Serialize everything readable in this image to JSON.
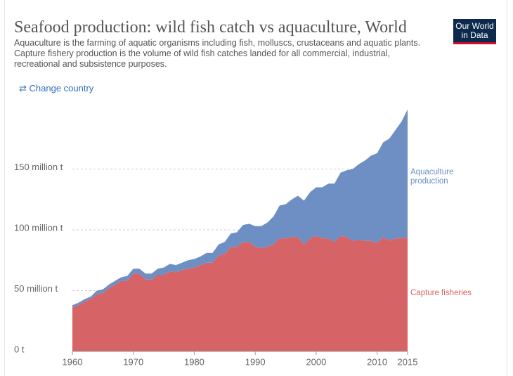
{
  "header": {
    "title": "Seafood production: wild fish catch vs aquaculture, World",
    "subtitle": "Aquaculture is the farming of aquatic organisms including fish, molluscs, crustaceans and aquatic plants. Capture fishery production is the volume of wild fish catches landed for all commercial, industrial, recreational and subsistence purposes.",
    "change_country": "Change country",
    "logo": "Our World in Data"
  },
  "chart_data": {
    "type": "area",
    "stacked": true,
    "x": [
      1960,
      1961,
      1962,
      1963,
      1964,
      1965,
      1966,
      1967,
      1968,
      1969,
      1970,
      1971,
      1972,
      1973,
      1974,
      1975,
      1976,
      1977,
      1978,
      1979,
      1980,
      1981,
      1982,
      1983,
      1984,
      1985,
      1986,
      1987,
      1988,
      1989,
      1990,
      1991,
      1992,
      1993,
      1994,
      1995,
      1996,
      1997,
      1998,
      1999,
      2000,
      2001,
      2002,
      2003,
      2004,
      2005,
      2006,
      2007,
      2008,
      2009,
      2010,
      2011,
      2012,
      2013,
      2014,
      2015
    ],
    "series": [
      {
        "name": "Capture fisheries",
        "color": "#d66466",
        "values": [
          36,
          38,
          41,
          43,
          47,
          48,
          52,
          55,
          58,
          58,
          64,
          64,
          59,
          59,
          63,
          63,
          66,
          65,
          67,
          68,
          69,
          71,
          73,
          73,
          79,
          80,
          86,
          86,
          90,
          90,
          86,
          85,
          86,
          88,
          93,
          93,
          94,
          94,
          88,
          93,
          95,
          93,
          93,
          90,
          95,
          94,
          91,
          92,
          91,
          91,
          89,
          94,
          91,
          93,
          93,
          94
        ]
      },
      {
        "name": "Aquaculture production",
        "color": "#6d8fc4",
        "values": [
          2,
          2,
          2,
          2,
          3,
          3,
          3,
          3,
          3,
          4,
          4,
          4,
          5,
          5,
          5,
          6,
          6,
          6,
          6,
          7,
          7,
          7,
          8,
          8,
          9,
          10,
          11,
          12,
          14,
          15,
          17,
          18,
          20,
          23,
          27,
          28,
          31,
          34,
          36,
          38,
          40,
          42,
          45,
          48,
          52,
          55,
          59,
          62,
          66,
          70,
          74,
          78,
          84,
          89,
          96,
          105
        ]
      }
    ],
    "xlim": [
      1960,
      2015
    ],
    "xticks": [
      1960,
      1970,
      1980,
      1990,
      2000,
      2010,
      2015
    ],
    "ylim": [
      0,
      200
    ],
    "yticks": [
      {
        "value": 0,
        "label": "0 t"
      },
      {
        "value": 50,
        "label": "50 million t"
      },
      {
        "value": 100,
        "label": "100 million t"
      },
      {
        "value": 150,
        "label": "150 million t"
      }
    ],
    "grid": true
  }
}
